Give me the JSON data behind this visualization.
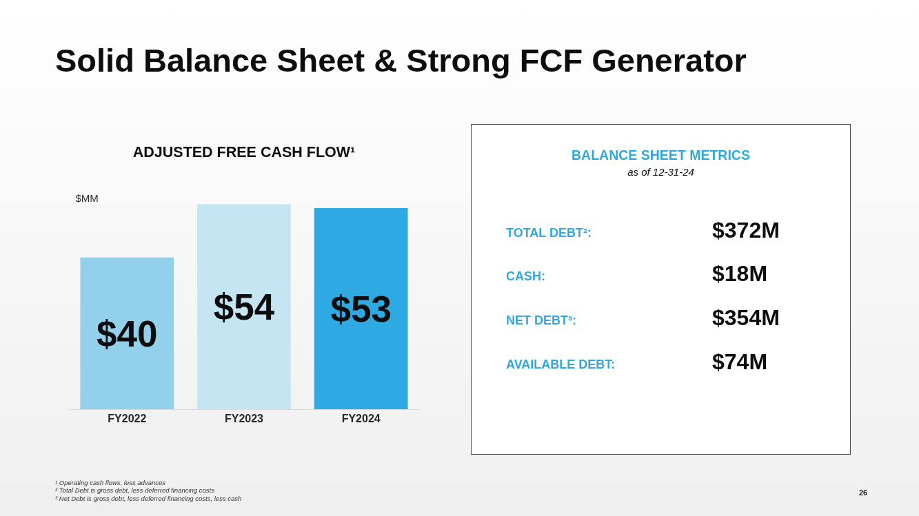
{
  "chart_data": [
    {
      "type": "other",
      "title": "Solid Balance Sheet & Strong FCF Generator",
      "annotations": [
        "¹ Operating cash flows, less advances",
        "² Total Debt is gross debt, less deferred financing costs",
        "³ Net Debt is gross debt, less deferred financing costs, less cash",
        "26"
      ]
    },
    {
      "type": "bar",
      "title": "ADJUSTED FREE CASH FLOW¹",
      "ylabel": "$MM",
      "categories": [
        "FY2022",
        "FY2023",
        "FY2024"
      ],
      "values": [
        40,
        54,
        53
      ],
      "colors": [
        "#92d0ec",
        "#c6e5f3",
        "#2fa9e1"
      ],
      "value_labels": [
        "$40",
        "$54",
        "$53"
      ]
    },
    {
      "type": "other",
      "title": "BALANCE SHEET METRICS",
      "subtitle": "as of 12-31-24",
      "annotations": [
        "TOTAL DEBT²:",
        "$372M",
        "CASH:",
        "$18M",
        "NET DEBT³:",
        "$354M",
        "AVAILABLE DEBT:",
        "$74M"
      ]
    }
  ]
}
